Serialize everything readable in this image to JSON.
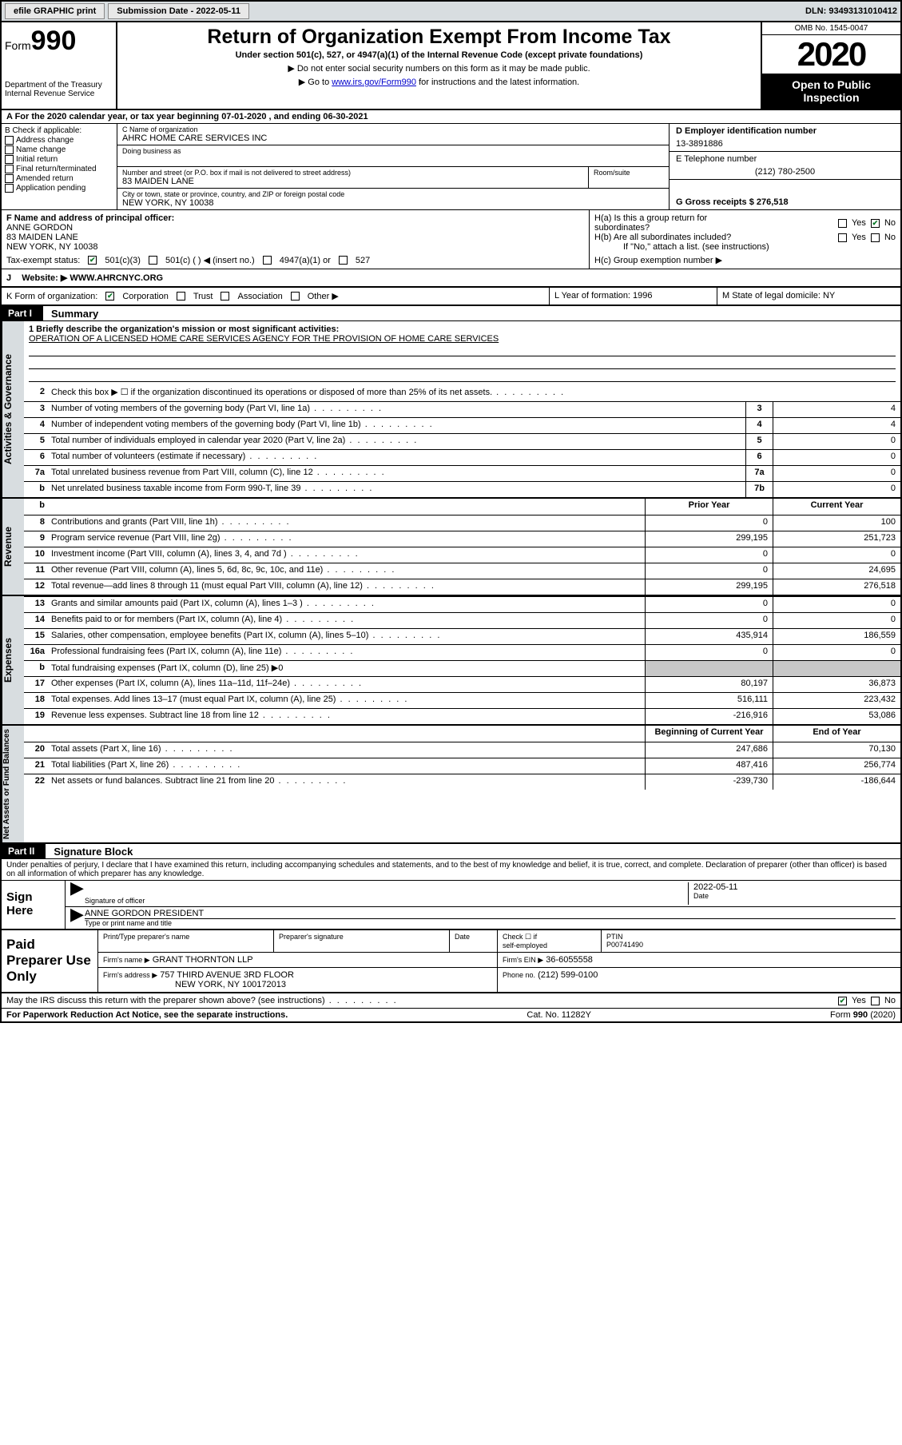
{
  "topbar": {
    "efile": "efile GRAPHIC print",
    "submission_label": "Submission Date - 2022-05-11",
    "dln": "DLN: 93493131010412"
  },
  "header": {
    "form_label": "Form",
    "form_number": "990",
    "dept": "Department of the Treasury",
    "irs": "Internal Revenue Service",
    "title": "Return of Organization Exempt From Income Tax",
    "subtitle": "Under section 501(c), 527, or 4947(a)(1) of the Internal Revenue Code (except private foundations)",
    "note1": "▶ Do not enter social security numbers on this form as it may be made public.",
    "note2_prefix": "▶ Go to ",
    "note2_link": "www.irs.gov/Form990",
    "note2_suffix": " for instructions and the latest information.",
    "omb": "OMB No. 1545-0047",
    "year": "2020",
    "public1": "Open to Public",
    "public2": "Inspection"
  },
  "period": "A For the 2020 calendar year, or tax year beginning 07-01-2020    , and ending 06-30-2021",
  "boxB": {
    "label": "B Check if applicable:",
    "items": [
      "Address change",
      "Name change",
      "Initial return",
      "Final return/terminated",
      "Amended return",
      "Application pending"
    ]
  },
  "boxC": {
    "name_label": "C Name of organization",
    "name": "AHRC HOME CARE SERVICES INC",
    "dba_label": "Doing business as",
    "addr_label": "Number and street (or P.O. box if mail is not delivered to street address)",
    "suite_label": "Room/suite",
    "addr": "83 MAIDEN LANE",
    "city_label": "City or town, state or province, country, and ZIP or foreign postal code",
    "city": "NEW YORK, NY  10038"
  },
  "boxD": {
    "ein_label": "D Employer identification number",
    "ein": "13-3891886",
    "phone_label": "E Telephone number",
    "phone": "(212) 780-2500",
    "gross_label": "G Gross receipts $ 276,518"
  },
  "boxF": {
    "label": "F  Name and address of principal officer:",
    "name": "ANNE GORDON",
    "addr1": "83 MAIDEN LANE",
    "addr2": "NEW YORK, NY  10038"
  },
  "boxH": {
    "a": "H(a)  Is this a group return for",
    "a2": "subordinates?",
    "b": "H(b)  Are all subordinates included?",
    "b2": "If \"No,\" attach a list. (see instructions)",
    "c": "H(c)  Group exemption number ▶",
    "yes": "Yes",
    "no": "No"
  },
  "taxexempt": {
    "label": "Tax-exempt status:",
    "c3": "501(c)(3)",
    "c": "501(c) (  ) ◀ (insert no.)",
    "a1": "4947(a)(1) or",
    "s527": "527"
  },
  "rowJ": {
    "label": "J",
    "text": "Website: ▶  WWW.AHRCNYC.ORG"
  },
  "rowK": {
    "label": "K Form of organization:",
    "corp": "Corporation",
    "trust": "Trust",
    "assoc": "Association",
    "other": "Other ▶",
    "l": "L Year of formation: 1996",
    "m": "M State of legal domicile: NY"
  },
  "partI": {
    "tag": "Part I",
    "title": "Summary"
  },
  "mission": {
    "q": "1  Briefly describe the organization's mission or most significant activities:",
    "text": "OPERATION OF A LICENSED HOME CARE SERVICES AGENCY FOR THE PROVISION OF HOME CARE SERVICES"
  },
  "lines_gov": [
    {
      "n": "2",
      "t": "Check this box ▶ ☐  if the organization discontinued its operations or disposed of more than 25% of its net assets."
    },
    {
      "n": "3",
      "t": "Number of voting members of the governing body (Part VI, line 1a)",
      "box": "3",
      "v": "4"
    },
    {
      "n": "4",
      "t": "Number of independent voting members of the governing body (Part VI, line 1b)",
      "box": "4",
      "v": "4"
    },
    {
      "n": "5",
      "t": "Total number of individuals employed in calendar year 2020 (Part V, line 2a)",
      "box": "5",
      "v": "0"
    },
    {
      "n": "6",
      "t": "Total number of volunteers (estimate if necessary)",
      "box": "6",
      "v": "0"
    },
    {
      "n": "7a",
      "t": "Total unrelated business revenue from Part VIII, column (C), line 12",
      "box": "7a",
      "v": "0"
    },
    {
      "n": "b",
      "t": "Net unrelated business taxable income from Form 990-T, line 39",
      "box": "7b",
      "v": "0"
    }
  ],
  "cols": {
    "prior": "Prior Year",
    "current": "Current Year",
    "begin": "Beginning of Current Year",
    "end": "End of Year"
  },
  "revenue": [
    {
      "n": "8",
      "t": "Contributions and grants (Part VIII, line 1h)",
      "p": "0",
      "c": "100"
    },
    {
      "n": "9",
      "t": "Program service revenue (Part VIII, line 2g)",
      "p": "299,195",
      "c": "251,723"
    },
    {
      "n": "10",
      "t": "Investment income (Part VIII, column (A), lines 3, 4, and 7d )",
      "p": "0",
      "c": "0"
    },
    {
      "n": "11",
      "t": "Other revenue (Part VIII, column (A), lines 5, 6d, 8c, 9c, 10c, and 11e)",
      "p": "0",
      "c": "24,695"
    },
    {
      "n": "12",
      "t": "Total revenue—add lines 8 through 11 (must equal Part VIII, column (A), line 12)",
      "p": "299,195",
      "c": "276,518"
    }
  ],
  "expenses": [
    {
      "n": "13",
      "t": "Grants and similar amounts paid (Part IX, column (A), lines 1–3 )",
      "p": "0",
      "c": "0"
    },
    {
      "n": "14",
      "t": "Benefits paid to or for members (Part IX, column (A), line 4)",
      "p": "0",
      "c": "0"
    },
    {
      "n": "15",
      "t": "Salaries, other compensation, employee benefits (Part IX, column (A), lines 5–10)",
      "p": "435,914",
      "c": "186,559"
    },
    {
      "n": "16a",
      "t": "Professional fundraising fees (Part IX, column (A), line 11e)",
      "p": "0",
      "c": "0"
    },
    {
      "n": "b",
      "t": "Total fundraising expenses (Part IX, column (D), line 25) ▶0",
      "gray": true
    },
    {
      "n": "17",
      "t": "Other expenses (Part IX, column (A), lines 11a–11d, 11f–24e)",
      "p": "80,197",
      "c": "36,873"
    },
    {
      "n": "18",
      "t": "Total expenses. Add lines 13–17 (must equal Part IX, column (A), line 25)",
      "p": "516,111",
      "c": "223,432"
    },
    {
      "n": "19",
      "t": "Revenue less expenses. Subtract line 18 from line 12",
      "p": "-216,916",
      "c": "53,086"
    }
  ],
  "netassets": [
    {
      "n": "20",
      "t": "Total assets (Part X, line 16)",
      "p": "247,686",
      "c": "70,130"
    },
    {
      "n": "21",
      "t": "Total liabilities (Part X, line 26)",
      "p": "487,416",
      "c": "256,774"
    },
    {
      "n": "22",
      "t": "Net assets or fund balances. Subtract line 21 from line 20",
      "p": "-239,730",
      "c": "-186,644"
    }
  ],
  "vlabels": {
    "gov": "Activities & Governance",
    "rev": "Revenue",
    "exp": "Expenses",
    "net": "Net Assets or Fund Balances"
  },
  "partII": {
    "tag": "Part II",
    "title": "Signature Block"
  },
  "penalty": "Under penalties of perjury, I declare that I have examined this return, including accompanying schedules and statements, and to the best of my knowledge and belief, it is true, correct, and complete. Declaration of preparer (other than officer) is based on all information of which preparer has any knowledge.",
  "sign": {
    "left": "Sign Here",
    "sig_of": "Signature of officer",
    "date": "2022-05-11",
    "date_lbl": "Date",
    "name": "ANNE GORDON  PRESIDENT",
    "name_lbl": "Type or print name and title"
  },
  "prep": {
    "left": "Paid Preparer Use Only",
    "h1": "Print/Type preparer's name",
    "h2": "Preparer's signature",
    "h3": "Date",
    "h4_a": "Check ☐ if",
    "h4_b": "self-employed",
    "h5": "PTIN",
    "ptin": "P00741490",
    "firm_lbl": "Firm's name    ▶",
    "firm": "GRANT THORNTON LLP",
    "ein_lbl": "Firm's EIN ▶",
    "ein": "36-6055558",
    "addr_lbl": "Firm's address ▶",
    "addr1": "757 THIRD AVENUE 3RD FLOOR",
    "addr2": "NEW YORK, NY  100172013",
    "phone_lbl": "Phone no.",
    "phone": "(212) 599-0100"
  },
  "discuss": "May the IRS discuss this return with the preparer shown above? (see instructions)",
  "footer": {
    "left": "For Paperwork Reduction Act Notice, see the separate instructions.",
    "mid": "Cat. No. 11282Y",
    "right": "Form 990 (2020)"
  }
}
